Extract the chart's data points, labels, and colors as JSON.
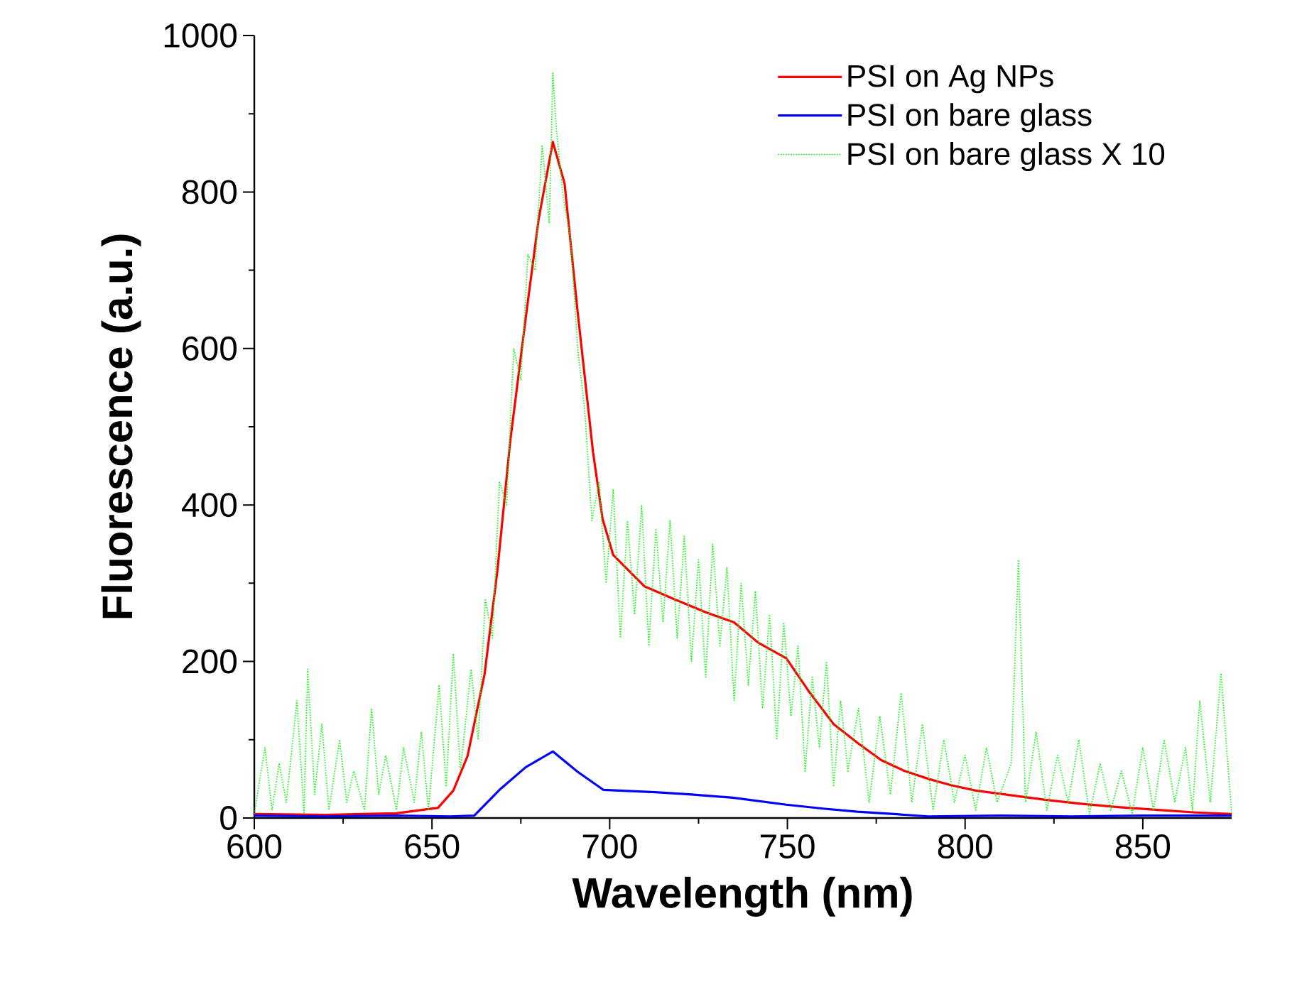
{
  "chart_data": {
    "type": "line",
    "xlabel": "Wavelength (nm)",
    "ylabel": "Fluorescence (a.u.)",
    "xlim": [
      600,
      875
    ],
    "ylim": [
      0,
      1000
    ],
    "xticks": [
      600,
      650,
      700,
      750,
      800,
      850
    ],
    "yticks": [
      0,
      200,
      400,
      600,
      800,
      1000
    ],
    "grid": false,
    "legend": "top right",
    "line_style": "solid",
    "series": [
      {
        "name": "PSI on Ag NPs",
        "color": "#ff0000",
        "x": [
          600,
          620,
          640,
          651.7,
          656,
          660,
          664.8,
          668.4,
          672,
          676.4,
          680,
          684,
          687.3,
          691,
          695.3,
          698,
          701,
          709.8,
          718,
          727,
          735,
          741.8,
          749.7,
          756,
          763,
          770,
          776.4,
          783,
          789.7,
          796,
          803,
          813,
          823,
          833,
          843,
          855,
          865,
          875
        ],
        "values": [
          5,
          4,
          6,
          13,
          35,
          79,
          184,
          316,
          481,
          640,
          765,
          864,
          811,
          646,
          468,
          382,
          336,
          296,
          280,
          263,
          250,
          224,
          204,
          162,
          120,
          95,
          74,
          60,
          50,
          42,
          35,
          29,
          23,
          18,
          14,
          10,
          7,
          5
        ]
      },
      {
        "name": "PSI on bare glass",
        "color": "#0000ff",
        "x": [
          600,
          620,
          640,
          655,
          661.9,
          669,
          676.4,
          684,
          691,
          698.2,
          712.8,
          723,
          734.6,
          749.7,
          760,
          769.7,
          780,
          789.7,
          810,
          830,
          850,
          875
        ],
        "values": [
          3,
          2,
          3,
          2,
          3,
          36,
          65,
          85,
          59,
          36,
          33,
          30,
          26,
          17,
          12,
          8,
          5,
          2,
          3,
          2,
          3,
          3
        ]
      },
      {
        "name": "PSI on bare glass X 10",
        "color": "#00ff00",
        "line_style": "dotted",
        "x": [
          600,
          603,
          605,
          607,
          609,
          612,
          614,
          615,
          617,
          619,
          621,
          624,
          626,
          628,
          631,
          633,
          635,
          637,
          640,
          642,
          645,
          647,
          649,
          652,
          654,
          656,
          658,
          661,
          663,
          665,
          667,
          669,
          671,
          673,
          675,
          677,
          679,
          681,
          683,
          684,
          685,
          687,
          689,
          691,
          693,
          695,
          697,
          699,
          701,
          703,
          705,
          707,
          709,
          711,
          713,
          715,
          717,
          719,
          721,
          723,
          725,
          727,
          729,
          731,
          733,
          735,
          737,
          739,
          741,
          743,
          745,
          747,
          749,
          751,
          753,
          755,
          757,
          759,
          761,
          763,
          765,
          767,
          770,
          773,
          776,
          779,
          782,
          785,
          788,
          791,
          794,
          797,
          800,
          803,
          806,
          809,
          813,
          815,
          817,
          820,
          823,
          826,
          829,
          832,
          835,
          838,
          841,
          844,
          847,
          850,
          853,
          856,
          859,
          862,
          864,
          866,
          869,
          872,
          875
        ],
        "values": [
          5,
          90,
          10,
          70,
          20,
          150,
          5,
          190,
          30,
          120,
          10,
          100,
          20,
          60,
          10,
          140,
          30,
          80,
          10,
          90,
          20,
          110,
          10,
          170,
          40,
          210,
          60,
          190,
          100,
          280,
          230,
          430,
          400,
          600,
          560,
          720,
          700,
          860,
          760,
          952,
          880,
          790,
          740,
          600,
          520,
          380,
          430,
          300,
          420,
          230,
          380,
          260,
          400,
          220,
          370,
          250,
          380,
          230,
          360,
          200,
          330,
          180,
          350,
          220,
          320,
          150,
          300,
          170,
          290,
          140,
          260,
          100,
          250,
          130,
          220,
          60,
          180,
          90,
          200,
          40,
          150,
          60,
          140,
          20,
          130,
          30,
          160,
          20,
          120,
          10,
          100,
          20,
          80,
          10,
          90,
          20,
          70,
          330,
          20,
          110,
          10,
          80,
          20,
          100,
          5,
          70,
          10,
          60,
          5,
          90,
          10,
          100,
          20,
          90,
          10,
          150,
          20,
          185,
          5
        ]
      }
    ]
  }
}
